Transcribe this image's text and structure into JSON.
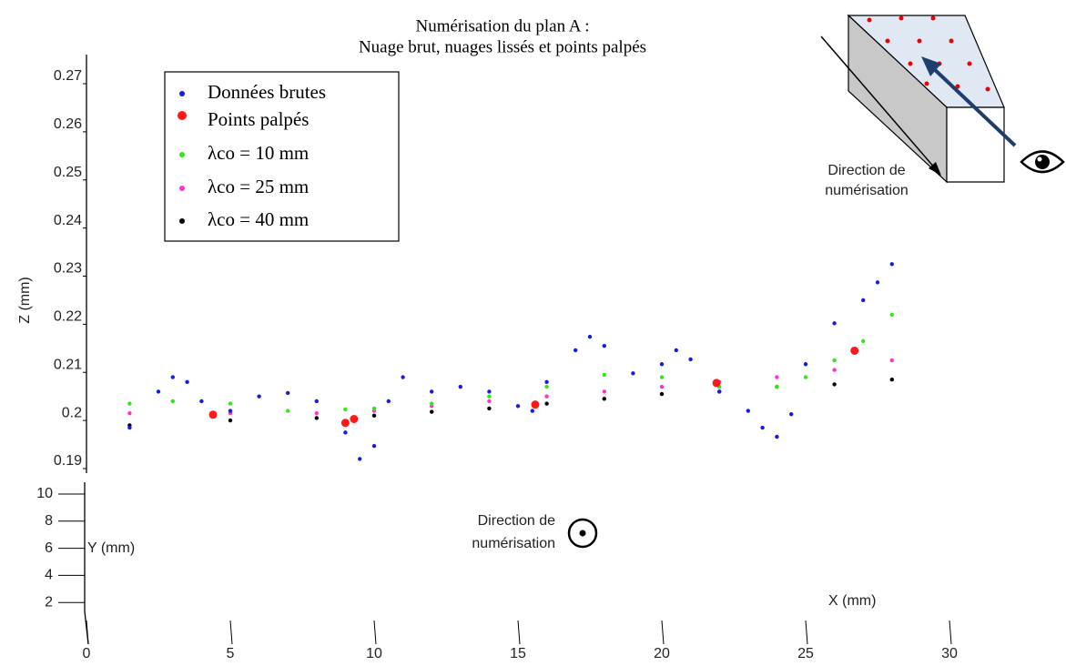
{
  "chart_data": {
    "type": "scatter",
    "title": [
      "Numérisation du plan A :",
      "Nuage brut, nuages lissés et points palpés"
    ],
    "x_label": "X (mm)",
    "y_label": "Y (mm)",
    "z_label": "Z (mm)",
    "xlim": [
      0,
      30
    ],
    "xticks": [
      0,
      5,
      10,
      15,
      20,
      25,
      30
    ],
    "zlim": [
      0.19,
      0.27
    ],
    "zticks": [
      0.19,
      0.2,
      0.21,
      0.22,
      0.23,
      0.24,
      0.25,
      0.26,
      0.27
    ],
    "ylim": [
      0,
      10
    ],
    "yticks": [
      2,
      4,
      6,
      8,
      10
    ],
    "inset_label": [
      "Direction de",
      "numérisation"
    ],
    "annotation": [
      "Direction de",
      "numérisation"
    ],
    "series": [
      {
        "name": "Données brutes",
        "color": "#1a1ae6",
        "x": [
          1.5,
          2.5,
          3,
          3.5,
          4,
          5,
          6,
          7,
          8,
          9,
          9.5,
          10,
          10.5,
          11,
          12,
          13,
          14,
          15,
          15.5,
          16,
          17,
          17.5,
          18,
          19,
          20,
          20.5,
          21,
          22,
          23,
          23.5,
          24,
          24.5,
          25,
          26,
          27,
          27.5,
          28
        ],
        "values": [
          0.1985,
          0.206,
          0.209,
          0.208,
          0.204,
          0.202,
          0.205,
          0.2057,
          0.204,
          0.1975,
          0.192,
          0.1947,
          0.204,
          0.209,
          0.206,
          0.207,
          0.206,
          0.203,
          0.202,
          0.208,
          0.2146,
          0.2174,
          0.2155,
          0.2098,
          0.2117,
          0.2146,
          0.2127,
          0.206,
          0.202,
          0.1985,
          0.1966,
          0.2013,
          0.2117,
          0.2202,
          0.225,
          0.2287,
          0.2325
        ]
      },
      {
        "name": "Points palpés",
        "color": "#ff1a1a",
        "x": [
          4.4,
          9.0,
          9.3,
          15.6,
          21.9,
          26.7
        ],
        "values": [
          0.2012,
          0.1995,
          0.2003,
          0.2033,
          0.2078,
          0.2145
        ]
      },
      {
        "name": "λco = 10 mm",
        "color": "#33e61a",
        "x": [
          1.5,
          3,
          5,
          7,
          9,
          10,
          12,
          14,
          16,
          18,
          20,
          22,
          24,
          25,
          26,
          27,
          28
        ],
        "values": [
          0.2035,
          0.204,
          0.2035,
          0.202,
          0.2023,
          0.2025,
          0.2035,
          0.205,
          0.207,
          0.2095,
          0.209,
          0.207,
          0.207,
          0.209,
          0.2125,
          0.2165,
          0.222
        ]
      },
      {
        "name": "λco = 25 mm",
        "color": "#ff33cc",
        "x": [
          1.5,
          5,
          8,
          10,
          12,
          14,
          16,
          18,
          20,
          22,
          24,
          26,
          28
        ],
        "values": [
          0.2015,
          0.2015,
          0.2015,
          0.202,
          0.203,
          0.204,
          0.205,
          0.206,
          0.207,
          0.208,
          0.209,
          0.2105,
          0.2125
        ]
      },
      {
        "name": "λco = 40 mm",
        "color": "#000000",
        "x": [
          1.5,
          5,
          8,
          10,
          12,
          14,
          16,
          18,
          20,
          22,
          24,
          26,
          28
        ],
        "values": [
          0.199,
          0.2,
          0.2005,
          0.201,
          0.2018,
          0.2025,
          0.2035,
          0.2045,
          0.2055,
          0.206,
          0.207,
          0.2075,
          0.2085
        ]
      }
    ]
  }
}
